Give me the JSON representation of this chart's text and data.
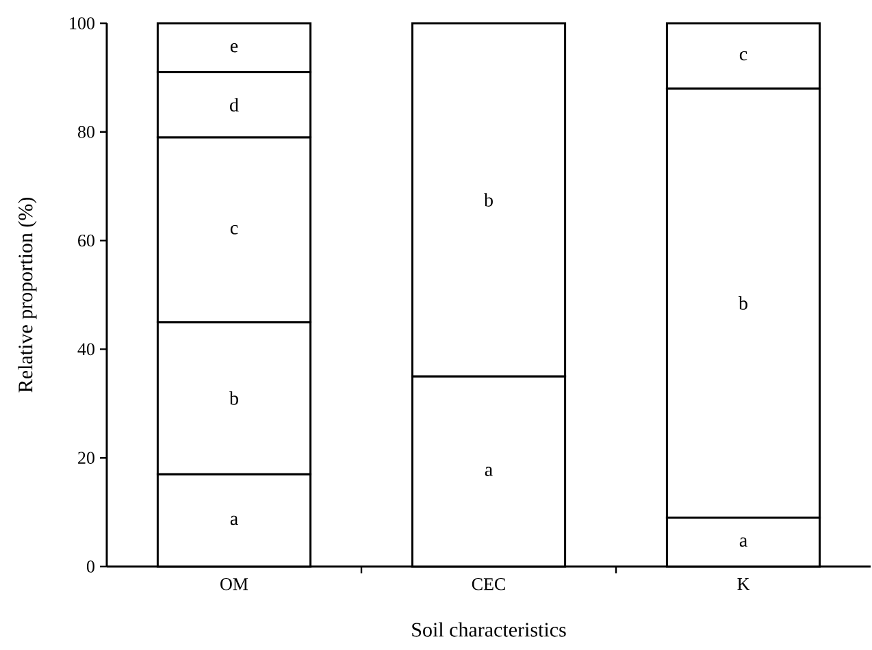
{
  "chart_data": {
    "type": "bar",
    "stacked": true,
    "xlabel": "Soil characteristics",
    "ylabel": "Relative proportion (%)",
    "categories": [
      "OM",
      "CEC",
      "K"
    ],
    "ylim": [
      0,
      100
    ],
    "yticks": [
      0,
      20,
      40,
      60,
      80,
      100
    ],
    "series": [
      {
        "color": "#ffffff",
        "values": [
          17,
          35,
          9
        ],
        "value_labels": [
          "a",
          "a",
          "a"
        ]
      },
      {
        "color": "#ffffff",
        "values": [
          28,
          65,
          79
        ],
        "value_labels": [
          "b",
          "b",
          "b"
        ]
      },
      {
        "color": "#ffffff",
        "values": [
          34,
          null,
          12
        ],
        "value_labels": [
          "c",
          null,
          "c"
        ]
      },
      {
        "color": "#ffffff",
        "values": [
          12,
          null,
          null
        ],
        "value_labels": [
          "d",
          null,
          null
        ]
      },
      {
        "color": "#ffffff",
        "values": [
          9,
          null,
          null
        ],
        "value_labels": [
          "e",
          null,
          null
        ]
      }
    ]
  }
}
